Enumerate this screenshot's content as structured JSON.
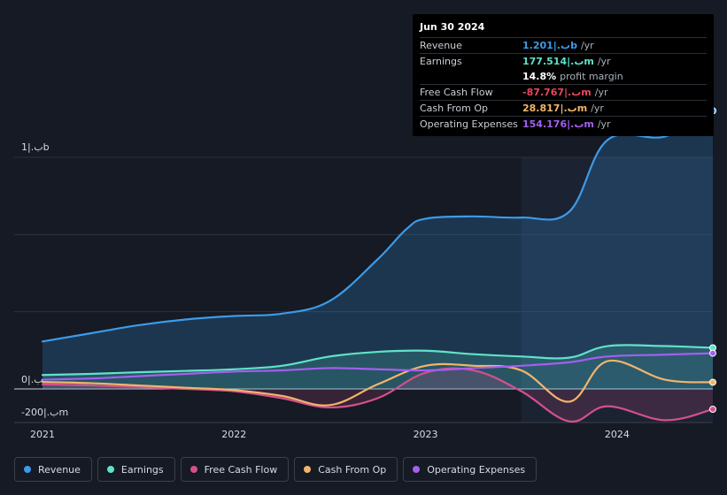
{
  "tooltip": {
    "date": "Jun 30 2024",
    "rows": [
      {
        "label": "Revenue",
        "value": "1.201|.بb",
        "unit": "/yr",
        "color": "#3d9be9"
      },
      {
        "label": "Earnings",
        "value": "177.514|.بm",
        "unit": "/yr",
        "color": "#5fe3c8"
      },
      {
        "label": "",
        "value": "14.8%",
        "unit": "profit margin",
        "color": "#ffffff"
      },
      {
        "label": "Free Cash Flow",
        "value": "-87.767|.بm",
        "unit": "/yr",
        "color": "#e8485c"
      },
      {
        "label": "Cash From Op",
        "value": "28.817|.بm",
        "unit": "/yr",
        "color": "#f2b56b"
      },
      {
        "label": "Operating Expenses",
        "value": "154.176|.بm",
        "unit": "/yr",
        "color": "#a45ff0"
      }
    ]
  },
  "chart_data": {
    "type": "area",
    "y_unit_labels": {
      "top": "1|.بb",
      "zero": "0|.ب",
      "bottom": "-200|.بm"
    },
    "ylim": [
      -200,
      1400
    ],
    "x_ticks": [
      {
        "label": "2021",
        "x": 2021.0
      },
      {
        "label": "2022",
        "x": 2022.0
      },
      {
        "label": "2023",
        "x": 2023.0
      },
      {
        "label": "2024",
        "x": 2024.0
      }
    ],
    "xlim": [
      2020.9,
      2024.55
    ],
    "highlight_from": 2023.5,
    "series": [
      {
        "name": "Revenue",
        "color": "#3d9be9",
        "fill": true,
        "x": [
          2021.0,
          2021.25,
          2021.5,
          2021.75,
          2022.0,
          2022.25,
          2022.5,
          2022.75,
          2022.9,
          2023.0,
          2023.25,
          2023.5,
          2023.75,
          2023.95,
          2024.25,
          2024.5
        ],
        "values": [
          205,
          240,
          275,
          300,
          315,
          325,
          380,
          560,
          690,
          735,
          745,
          740,
          765,
          1075,
          1090,
          1201
        ]
      },
      {
        "name": "Earnings",
        "color": "#5fe3c8",
        "fill": true,
        "x": [
          2021.0,
          2021.25,
          2021.5,
          2021.75,
          2022.0,
          2022.25,
          2022.5,
          2022.75,
          2023.0,
          2023.25,
          2023.5,
          2023.75,
          2023.95,
          2024.25,
          2024.5
        ],
        "values": [
          60,
          65,
          72,
          78,
          85,
          100,
          140,
          160,
          165,
          150,
          140,
          135,
          185,
          185,
          177.5
        ]
      },
      {
        "name": "Free Cash Flow",
        "color": "#d4508b",
        "fill": true,
        "x": [
          2021.0,
          2021.25,
          2021.5,
          2021.75,
          2022.0,
          2022.25,
          2022.5,
          2022.75,
          2023.0,
          2023.25,
          2023.5,
          2023.75,
          2023.95,
          2024.25,
          2024.5
        ],
        "values": [
          20,
          15,
          8,
          0,
          -10,
          -40,
          -80,
          -40,
          70,
          80,
          -10,
          -140,
          -75,
          -135,
          -87.8
        ]
      },
      {
        "name": "Cash From Op",
        "color": "#f2b56b",
        "fill": false,
        "x": [
          2021.0,
          2021.25,
          2021.5,
          2021.75,
          2022.0,
          2022.25,
          2022.5,
          2022.75,
          2023.0,
          2023.25,
          2023.5,
          2023.75,
          2023.95,
          2024.25,
          2024.5
        ],
        "values": [
          30,
          25,
          15,
          5,
          -5,
          -30,
          -70,
          20,
          100,
          100,
          80,
          -55,
          120,
          40,
          28.8
        ]
      },
      {
        "name": "Operating Expenses",
        "color": "#a45ff0",
        "fill": false,
        "x": [
          2021.0,
          2021.25,
          2021.5,
          2021.75,
          2022.0,
          2022.25,
          2022.5,
          2022.75,
          2023.0,
          2023.25,
          2023.5,
          2023.75,
          2023.95,
          2024.25,
          2024.5
        ],
        "values": [
          40,
          45,
          55,
          65,
          75,
          80,
          90,
          85,
          80,
          90,
          100,
          115,
          140,
          148,
          154.2
        ]
      }
    ]
  },
  "legend": [
    {
      "label": "Revenue",
      "color": "#3d9be9"
    },
    {
      "label": "Earnings",
      "color": "#5fe3c8"
    },
    {
      "label": "Free Cash Flow",
      "color": "#d4508b"
    },
    {
      "label": "Cash From Op",
      "color": "#f2b56b"
    },
    {
      "label": "Operating Expenses",
      "color": "#a45ff0"
    }
  ]
}
